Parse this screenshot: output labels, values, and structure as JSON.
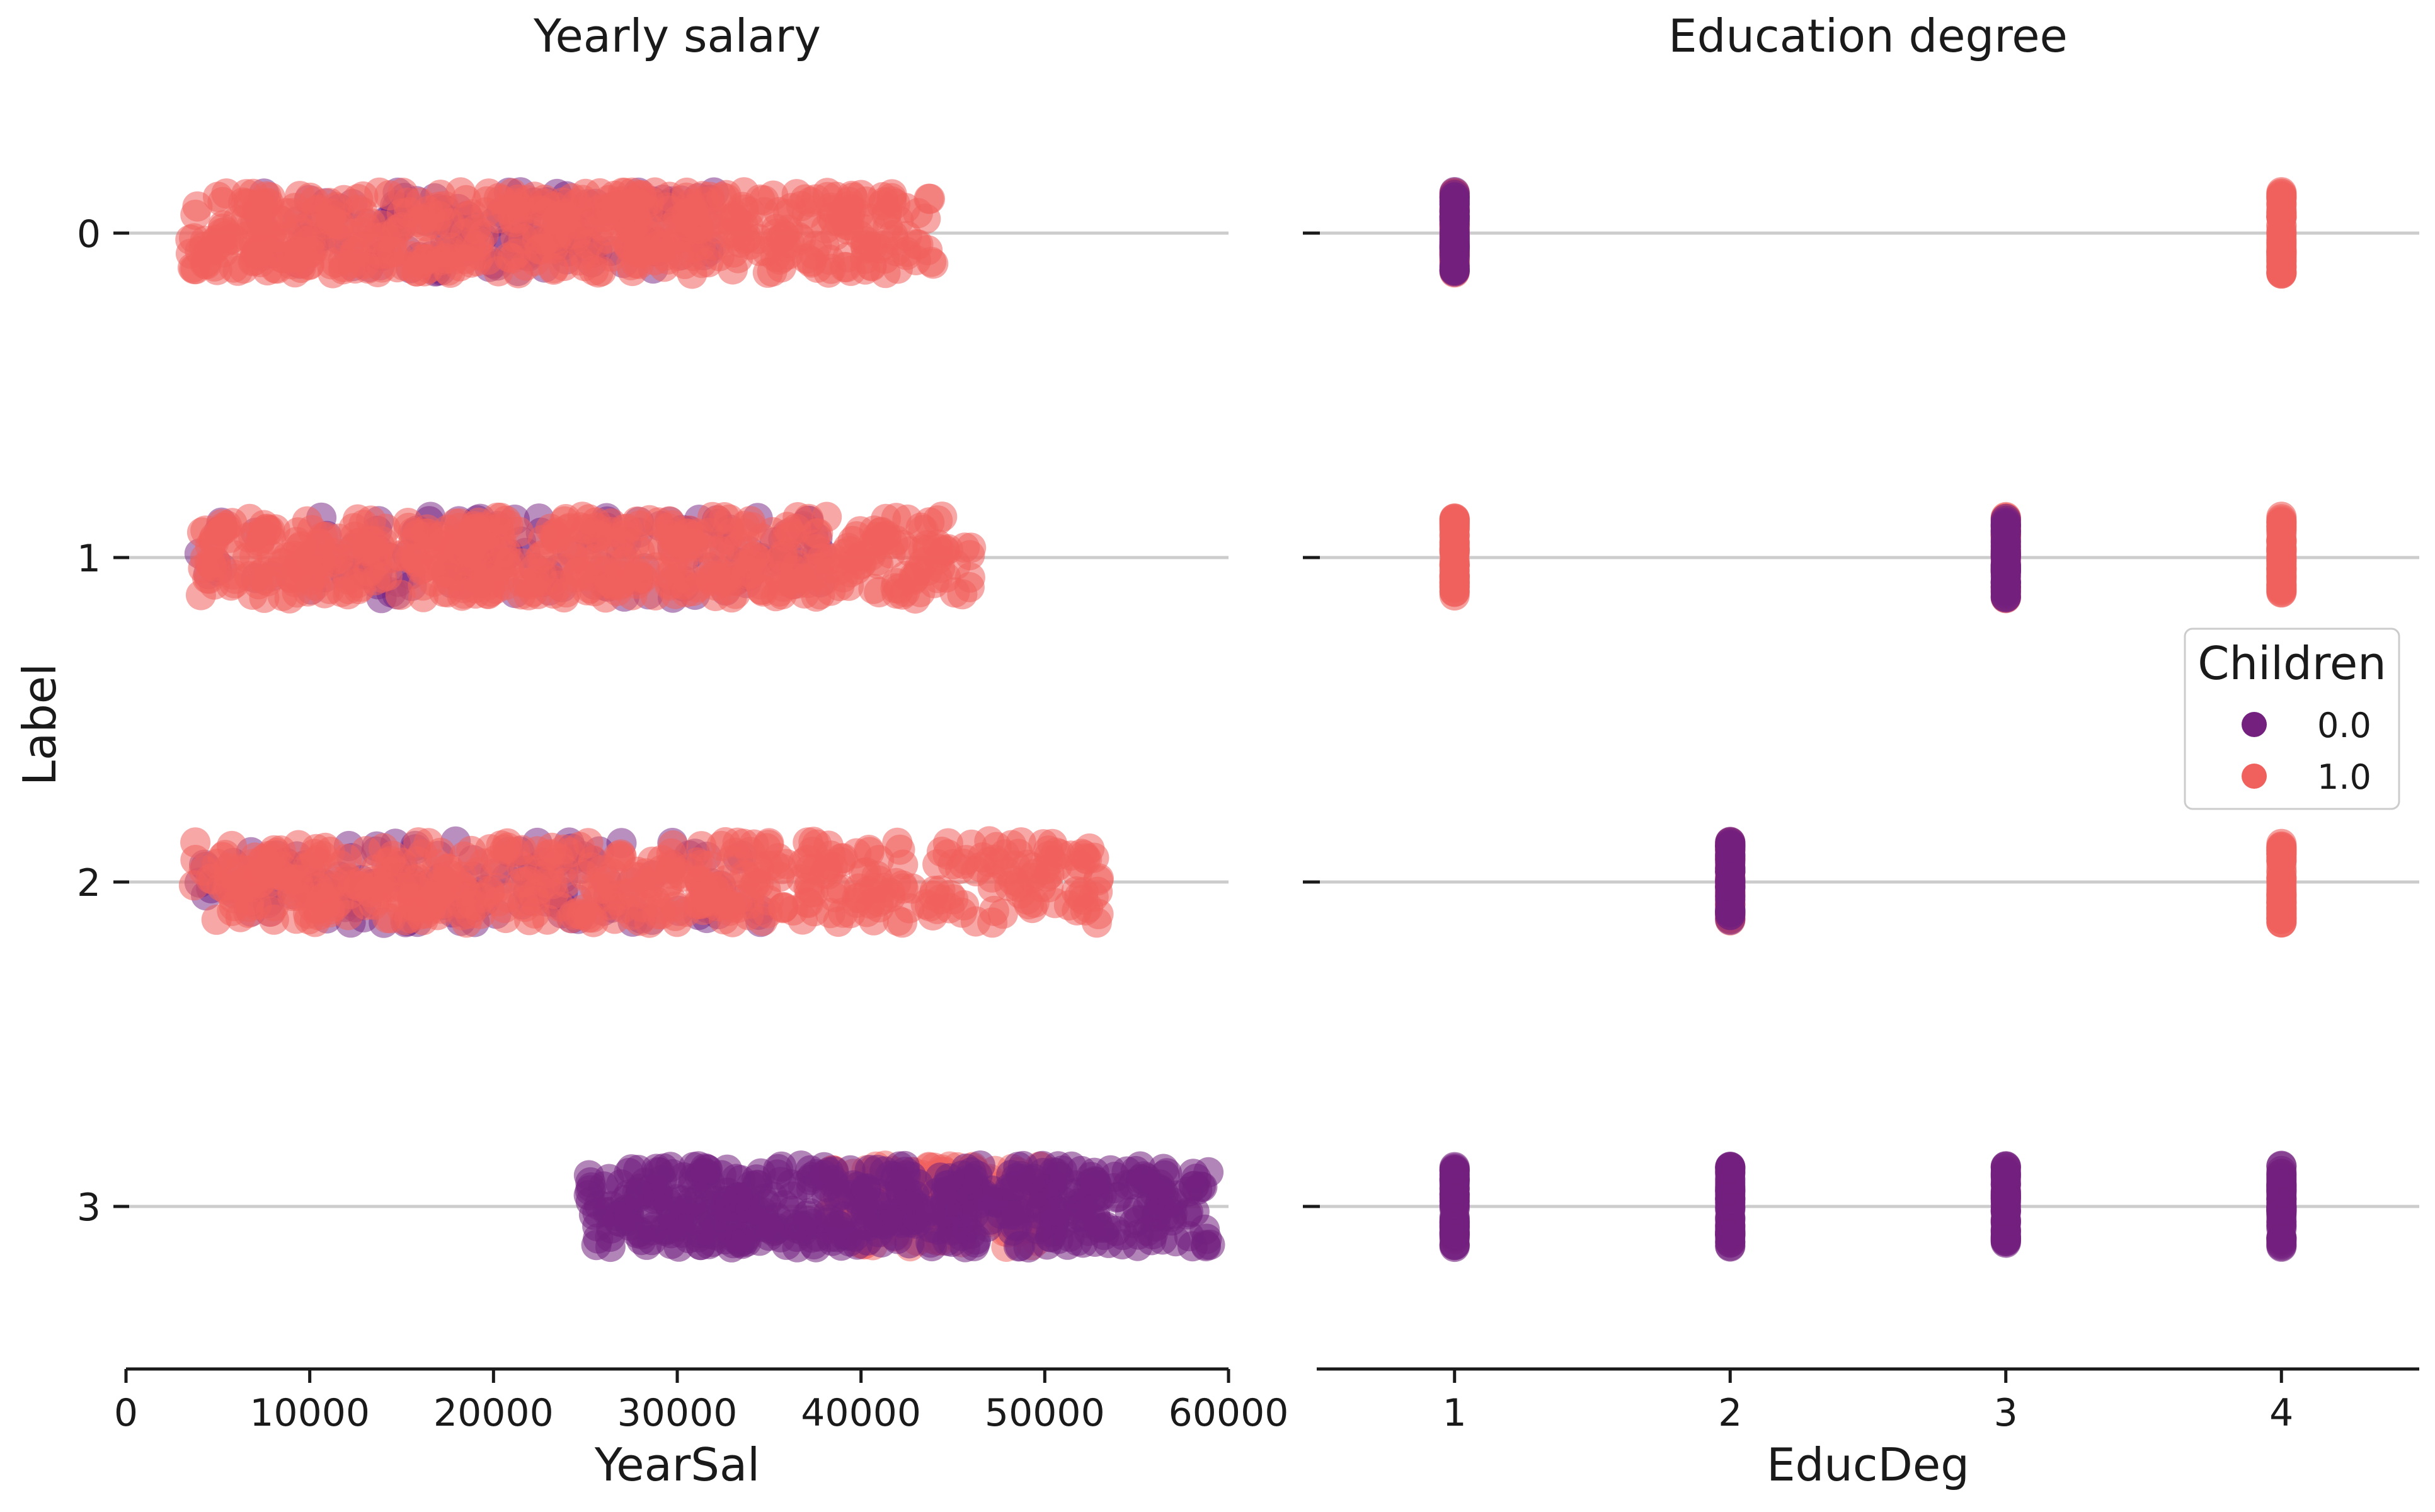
{
  "chart_data": [
    {
      "type": "strip",
      "title": "Yearly salary",
      "xlabel": "YearSal",
      "ylabel": "Label",
      "xlim": [
        0,
        60000
      ],
      "x_ticks": [
        0,
        10000,
        20000,
        30000,
        40000,
        50000,
        60000
      ],
      "categories": [
        "0",
        "1",
        "2",
        "3"
      ],
      "hue": "Children",
      "series": [
        {
          "name": "0.0",
          "color": "#73207f",
          "ranges_by_category": [
            {
              "category": "0",
              "min": 7000,
              "max": 32000,
              "density": "sparse"
            },
            {
              "category": "1",
              "min": 4000,
              "max": 38000,
              "density": "sparse"
            },
            {
              "category": "2",
              "min": 4000,
              "max": 35000,
              "density": "sparse"
            },
            {
              "category": "3",
              "min": 25000,
              "max": 59000,
              "density": "dense"
            }
          ]
        },
        {
          "name": "1.0",
          "color": "#f0605d",
          "ranges_by_category": [
            {
              "category": "0",
              "min": 3500,
              "max": 44000,
              "density": "dense"
            },
            {
              "category": "1",
              "min": 4000,
              "max": 46000,
              "density": "dense"
            },
            {
              "category": "2",
              "min": 3500,
              "max": 53000,
              "density": "dense"
            },
            {
              "category": "3",
              "min": 38000,
              "max": 50000,
              "density": "sparse"
            }
          ]
        }
      ],
      "grid": "horizontal",
      "legend": "none"
    },
    {
      "type": "strip",
      "title": "Education degree",
      "xlabel": "EducDeg",
      "ylabel": "",
      "xlim": [
        0.5,
        4.5
      ],
      "x_ticks": [
        1,
        2,
        3,
        4
      ],
      "categories": [
        "0",
        "1",
        "2",
        "3"
      ],
      "hue": "Children",
      "series": [
        {
          "name": "0.0",
          "color": "#73207f",
          "points": [
            {
              "category": "0",
              "x": 1
            },
            {
              "category": "1",
              "x": 3
            },
            {
              "category": "2",
              "x": 2
            },
            {
              "category": "3",
              "x": 1
            },
            {
              "category": "3",
              "x": 2
            },
            {
              "category": "3",
              "x": 3
            },
            {
              "category": "3",
              "x": 4
            }
          ]
        },
        {
          "name": "1.0",
          "color": "#f0605d",
          "points": [
            {
              "category": "0",
              "x": 1
            },
            {
              "category": "0",
              "x": 4
            },
            {
              "category": "1",
              "x": 1
            },
            {
              "category": "1",
              "x": 3
            },
            {
              "category": "1",
              "x": 4
            },
            {
              "category": "2",
              "x": 2
            },
            {
              "category": "2",
              "x": 4
            }
          ]
        }
      ],
      "grid": "horizontal",
      "legend": "right"
    }
  ],
  "legend": {
    "title": "Children",
    "entries": [
      {
        "label": "0.0",
        "color": "#73207f"
      },
      {
        "label": "1.0",
        "color": "#f0605d"
      }
    ]
  }
}
